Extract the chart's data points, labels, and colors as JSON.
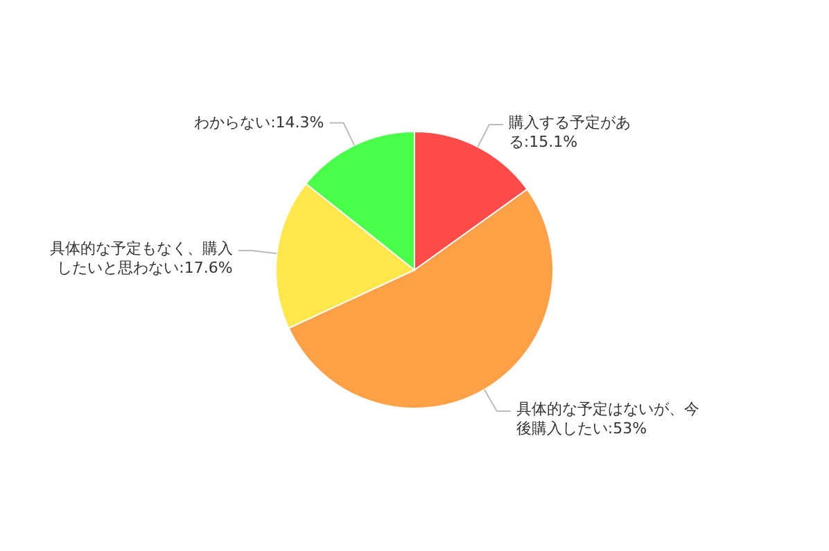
{
  "chart_data": {
    "type": "pie",
    "categories": [
      "購入する予定がある",
      "具体的な予定はないが、今後購入したい",
      "具体的な予定もなく、購入したいと思わない",
      "わからない"
    ],
    "values": [
      15.1,
      53,
      17.6,
      14.3
    ],
    "value_labels": [
      ":15.1%",
      ":53%",
      ":17.6%",
      ":14.3%"
    ],
    "colors": [
      "#ff4a4a",
      "#ffa047",
      "#ffe64a",
      "#4aff4a"
    ]
  }
}
